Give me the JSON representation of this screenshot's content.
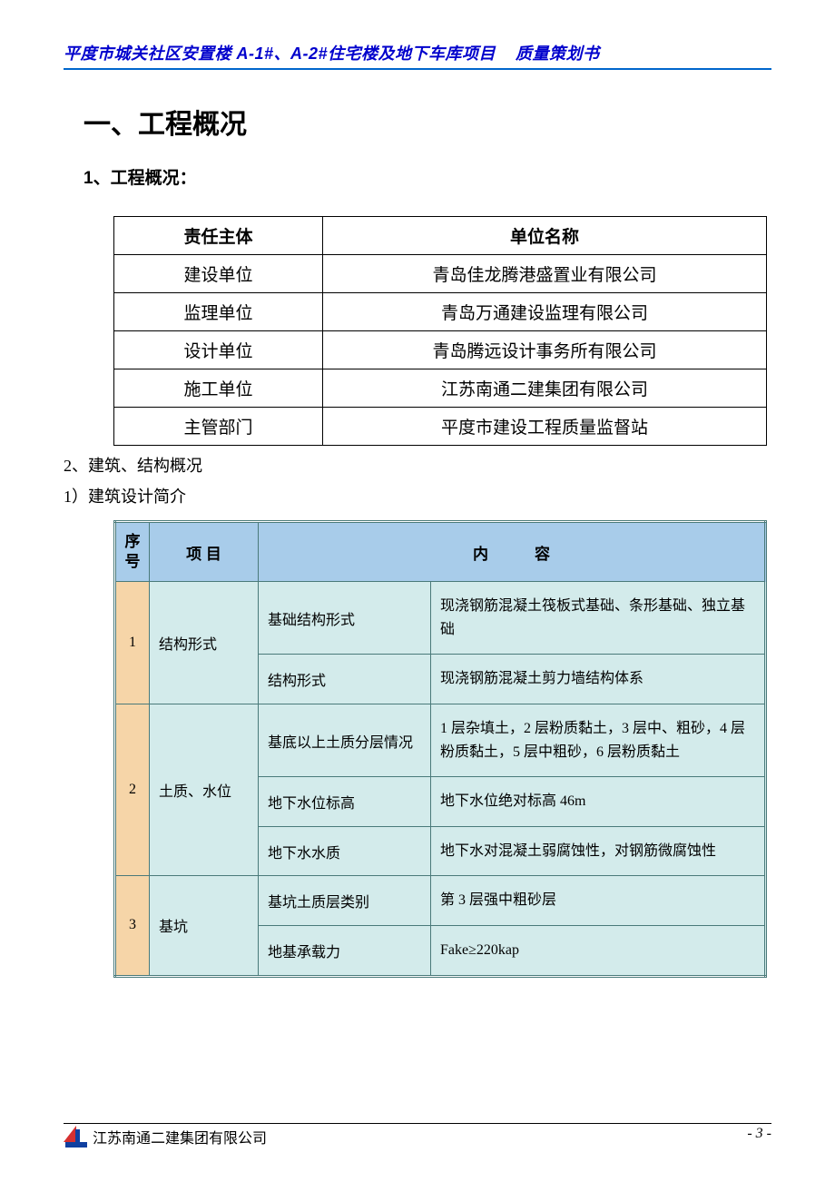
{
  "header": {
    "project": "平度市城关社区安置楼 A-1#、A-2#住宅楼及地下车库项目",
    "doctype": "质量策划书"
  },
  "section_title": "一、工程概况",
  "subsection1_title": "1、工程概况：",
  "table1": {
    "headers": [
      "责任主体",
      "单位名称"
    ],
    "rows": [
      [
        "建设单位",
        "青岛佳龙腾港盛置业有限公司"
      ],
      [
        "监理单位",
        "青岛万通建设监理有限公司"
      ],
      [
        "设计单位",
        "青岛腾远设计事务所有限公司"
      ],
      [
        "施工单位",
        "江苏南通二建集团有限公司"
      ],
      [
        "主管部门",
        "平度市建设工程质量监督站"
      ]
    ]
  },
  "sub_line1": "2、建筑、结构概况",
  "sub_line2": "1）建筑设计简介",
  "table2": {
    "headers": {
      "seq": "序号",
      "proj": "项 目",
      "content": "内   容"
    },
    "groups": [
      {
        "seq": "1",
        "project": "结构形式",
        "rows": [
          {
            "key": "基础结构形式",
            "val": "现浇钢筋混凝土筏板式基础、条形基础、独立基础"
          },
          {
            "key": "结构形式",
            "val": "现浇钢筋混凝土剪力墙结构体系"
          }
        ]
      },
      {
        "seq": "2",
        "project": "土质、水位",
        "rows": [
          {
            "key": "基底以上土质分层情况",
            "val": "1 层杂填土，2 层粉质黏土，3 层中、粗砂，4 层粉质黏土，5 层中粗砂，6 层粉质黏土"
          },
          {
            "key": "地下水位标高",
            "val": "地下水位绝对标高 46m"
          },
          {
            "key": "地下水水质",
            "val": "地下水对混凝土弱腐蚀性，对钢筋微腐蚀性"
          }
        ]
      },
      {
        "seq": "3",
        "project": "基坑",
        "rows": [
          {
            "key": "基坑土质层类别",
            "val": "第 3 层强中粗砂层"
          },
          {
            "key": "地基承载力",
            "val": "Fake≥220kap"
          }
        ]
      }
    ]
  },
  "footer": {
    "company": "江苏南通二建集团有限公司",
    "page": "- 3 -"
  },
  "colors": {
    "header_text": "#0000cc",
    "header_rule": "#0066cc",
    "t2_head_bg": "#a8ccea",
    "t2_cell_bg": "#d3ebeb",
    "t2_seq_bg": "#f6d5a8",
    "t2_border": "#4a7a7a"
  }
}
